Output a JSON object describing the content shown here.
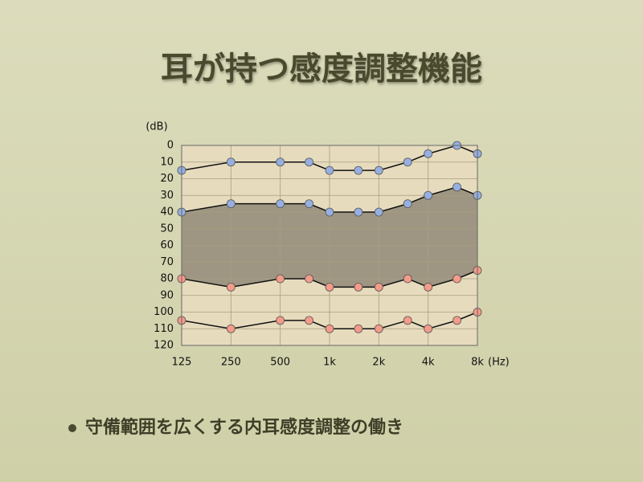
{
  "chart_data": {
    "type": "line",
    "title": "耳が持つ感度調整機能",
    "ylabel": "(dB)",
    "xlabel": "(Hz)",
    "log_x": true,
    "grid": true,
    "x": [
      125,
      250,
      500,
      750,
      1000,
      1500,
      2000,
      3000,
      4000,
      6000,
      8000
    ],
    "xlim": [
      125,
      8000
    ],
    "xticks": [
      125,
      250,
      500,
      {
        "value": 1000,
        "label": "1k"
      },
      {
        "value": 2000,
        "label": "2k"
      },
      {
        "value": 4000,
        "label": "4k"
      },
      {
        "value": 8000,
        "label": "8k"
      }
    ],
    "ylim": [
      120,
      0
    ],
    "yticks": [
      0,
      10,
      20,
      30,
      40,
      50,
      60,
      70,
      80,
      90,
      100,
      110,
      120
    ],
    "plot_color": "#e6dbbd",
    "band_color": "#9e9682",
    "line_color": "#111111",
    "series": [
      {
        "color": "#97afe0",
        "values": [
          15,
          10,
          10,
          10,
          15,
          15,
          15,
          10,
          5,
          0,
          5
        ]
      },
      {
        "color": "#97afe0",
        "values": [
          40,
          35,
          35,
          35,
          40,
          40,
          40,
          35,
          30,
          25,
          30
        ]
      },
      {
        "color": "#f49b89",
        "values": [
          80,
          85,
          80,
          80,
          85,
          85,
          85,
          80,
          85,
          80,
          75
        ]
      },
      {
        "color": "#f49b89",
        "values": [
          105,
          110,
          105,
          105,
          110,
          110,
          110,
          105,
          110,
          105,
          100
        ]
      }
    ]
  },
  "bullets": [
    "守備範囲を広くする内耳感度調整の働き"
  ]
}
